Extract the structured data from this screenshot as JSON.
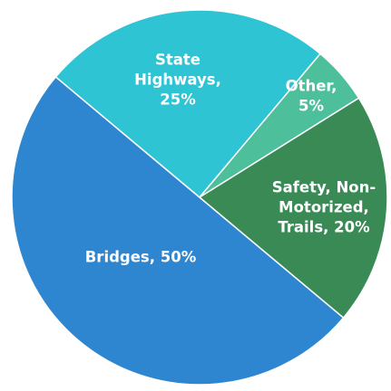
{
  "chart_data": {
    "type": "pie",
    "labels": [
      [
        "Bridges, 50%"
      ],
      [
        "State",
        "Highways,",
        "25%"
      ],
      [
        "Other,",
        "5%"
      ],
      [
        "Safety, Non-",
        "Motorized,",
        "Trails, 20%"
      ]
    ],
    "values": [
      50,
      25,
      5,
      20
    ],
    "colors": [
      "#2f86d0",
      "#2ec4d3",
      "#4dbf9a",
      "#3a8a56"
    ]
  }
}
